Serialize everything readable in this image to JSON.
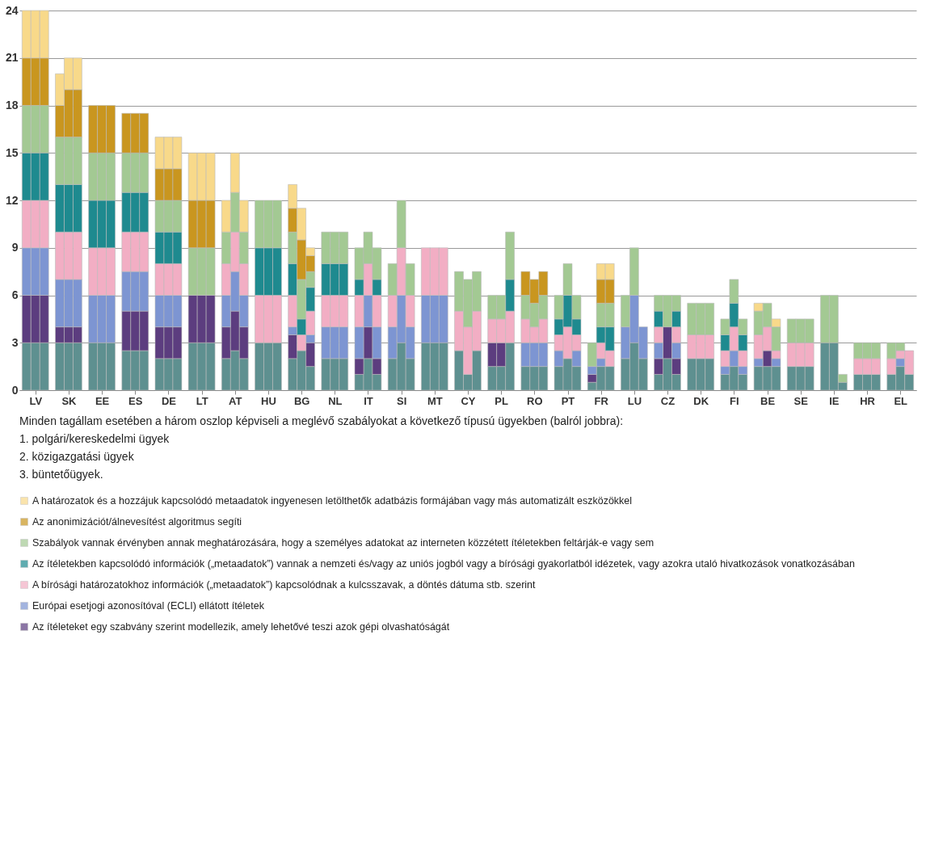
{
  "chart_data": {
    "type": "bar",
    "stacked": true,
    "grid": "y",
    "legend": "bottom",
    "categories": [
      null,
      "LV",
      null,
      null,
      "SK",
      null,
      null,
      "EE",
      null,
      null,
      "ES",
      null,
      null,
      "DE",
      null,
      null,
      "LT",
      null,
      null,
      "AT",
      null,
      null,
      "HU",
      null,
      null,
      "BG",
      null,
      null,
      "NL",
      null,
      null,
      "IT",
      null,
      null,
      "SI",
      null,
      null,
      "MT",
      null,
      null,
      "CY",
      null,
      null,
      "PL",
      null,
      null,
      "RO",
      null,
      null,
      "PT",
      null,
      null,
      "FR",
      null,
      null,
      "LU",
      null,
      null,
      "CZ",
      null,
      null,
      "DK",
      null,
      null,
      "FI",
      null,
      null,
      "BE",
      null,
      null,
      "SE",
      null,
      null,
      "IE",
      null,
      null,
      "HR",
      null,
      null,
      "EL",
      null
    ],
    "ylim": [
      0,
      24
    ],
    "yticks": [
      0,
      3,
      6,
      9,
      12,
      15,
      18,
      21,
      24
    ],
    "series": [
      {
        "color": "#5e9090",
        "values": [
          3,
          3,
          3,
          3,
          3,
          3,
          3,
          3,
          3,
          2.5,
          2.5,
          2.5,
          2,
          2,
          2,
          3,
          3,
          3,
          2,
          2.5,
          2,
          3,
          3,
          3,
          2,
          2.5,
          1.5,
          2,
          2,
          2,
          1,
          2,
          1,
          2,
          3,
          2,
          3,
          3,
          3,
          2.5,
          1,
          2.5,
          1.5,
          1.5,
          3,
          1.5,
          1.5,
          1.5,
          1.5,
          2,
          1.5,
          0.5,
          1.5,
          1.5,
          2,
          3,
          2,
          1,
          2,
          1,
          2,
          2,
          2,
          1,
          1.5,
          1,
          1.5,
          1.5,
          1.5,
          1.5,
          1.5,
          1.5,
          3,
          3,
          0.5,
          1,
          1,
          1,
          1,
          1.5,
          1
        ]
      },
      {
        "name": "Az ítéleteket egy szabvány szerint modellezik, amely lehetővé teszi azok gépi olvashatóságát",
        "color": "#5c3d7f",
        "values": [
          3,
          3,
          3,
          1,
          1,
          1,
          null,
          null,
          null,
          2.5,
          2.5,
          2.5,
          2,
          2,
          2,
          3,
          3,
          3,
          2,
          2.5,
          2,
          null,
          null,
          null,
          1.5,
          null,
          1.5,
          null,
          null,
          null,
          1,
          2,
          1,
          null,
          null,
          null,
          null,
          null,
          null,
          null,
          null,
          null,
          1.5,
          1.5,
          null,
          null,
          null,
          null,
          null,
          null,
          null,
          0.5,
          null,
          null,
          null,
          null,
          null,
          1,
          2,
          1,
          null,
          null,
          null,
          null,
          null,
          null,
          null,
          1,
          null,
          null,
          null,
          null,
          null,
          null,
          null,
          null,
          null,
          null,
          null,
          null,
          null
        ]
      },
      {
        "name": "Európai esetjogi azonosítóval (ECLI) ellátott ítéletek",
        "color": "#7d95d2",
        "values": [
          3,
          3,
          3,
          3,
          3,
          3,
          3,
          3,
          3,
          2.5,
          2.5,
          2.5,
          2,
          2,
          2,
          null,
          null,
          null,
          2,
          2.5,
          2,
          null,
          null,
          null,
          0.5,
          null,
          0.5,
          2,
          2,
          2,
          2,
          2,
          2,
          2,
          3,
          2,
          3,
          3,
          3,
          null,
          null,
          null,
          null,
          null,
          null,
          1.5,
          1.5,
          1.5,
          1,
          null,
          1,
          0.5,
          0.5,
          null,
          2,
          3,
          2,
          1,
          null,
          1,
          null,
          null,
          null,
          0.5,
          1,
          0.5,
          0.5,
          null,
          0.5,
          null,
          null,
          null,
          null,
          null,
          null,
          null,
          null,
          null,
          null,
          0.5,
          null
        ]
      },
      {
        "name": "A bírósági határozatokhoz információk („metaadatok”) kapcsolódnak a kulcsszavak, a döntés dátuma stb. szerint",
        "color": "#f2aec4",
        "values": [
          3,
          3,
          3,
          3,
          3,
          3,
          3,
          3,
          3,
          2.5,
          2.5,
          2.5,
          2,
          2,
          2,
          null,
          null,
          null,
          2,
          2.5,
          2,
          3,
          3,
          3,
          2,
          1,
          1.5,
          2,
          2,
          2,
          2,
          2,
          2,
          2,
          3,
          2,
          3,
          3,
          3,
          2.5,
          3,
          2.5,
          1.5,
          1.5,
          2,
          1.5,
          1,
          1.5,
          1,
          2,
          1,
          null,
          1,
          1,
          null,
          null,
          null,
          1,
          null,
          1,
          1.5,
          1.5,
          1.5,
          1,
          1.5,
          1,
          1.5,
          1.5,
          0.5,
          1.5,
          1.5,
          1.5,
          null,
          null,
          null,
          1,
          1,
          1,
          1,
          0.5,
          1.5
        ]
      },
      {
        "name": "Az ítéletekben kapcsolódó információk („metaadatok”) vannak a nemzeti és/vagy az uniós jogból vagy a bírósági gyakorlatból idézetek, vagy azokra utaló hivatkozások vonatkozásában",
        "color": "#1e8a8f",
        "values": [
          3,
          3,
          3,
          3,
          3,
          3,
          3,
          3,
          3,
          2.5,
          2.5,
          2.5,
          2,
          2,
          2,
          null,
          null,
          null,
          null,
          null,
          null,
          3,
          3,
          3,
          2,
          1,
          1.5,
          2,
          2,
          2,
          1,
          null,
          1,
          null,
          null,
          null,
          null,
          null,
          null,
          null,
          null,
          null,
          null,
          null,
          2,
          null,
          null,
          null,
          1,
          2,
          1,
          null,
          1,
          1.5,
          null,
          null,
          null,
          1,
          null,
          1,
          null,
          null,
          null,
          1,
          1.5,
          1,
          null,
          null,
          null,
          null,
          null,
          null,
          null,
          null,
          null,
          null,
          null,
          null,
          null,
          null,
          null
        ]
      },
      {
        "name": "Szabályok vannak érvényben annak meghatározására, hogy a személyes adatokat az interneten közzétett ítéletekben feltárják-e vagy sem",
        "color": "#a3c993",
        "values": [
          3,
          3,
          3,
          3,
          3,
          3,
          3,
          3,
          3,
          2.5,
          2.5,
          2.5,
          2,
          2,
          2,
          3,
          3,
          3,
          2,
          2.5,
          2,
          3,
          3,
          3,
          2,
          2.5,
          1,
          2,
          2,
          2,
          2,
          2,
          2,
          2,
          3,
          2,
          null,
          null,
          null,
          2.5,
          3,
          2.5,
          1.5,
          1.5,
          3,
          1.5,
          1.5,
          1.5,
          1.5,
          2,
          1.5,
          1.5,
          1.5,
          1.5,
          2,
          3,
          null,
          1,
          2,
          1,
          2,
          2,
          2,
          1,
          1.5,
          1,
          1.5,
          1.5,
          1.5,
          1.5,
          1.5,
          1.5,
          3,
          3,
          0.5,
          1,
          1,
          1,
          1,
          0.5,
          null
        ]
      },
      {
        "name": "Az anonimizációt/álnevesítést algoritmus segíti",
        "color": "#c9961f",
        "values": [
          3,
          3,
          3,
          2,
          3,
          3,
          3,
          3,
          3,
          2.5,
          2.5,
          2.5,
          2,
          2,
          2,
          3,
          3,
          3,
          null,
          null,
          null,
          null,
          null,
          null,
          1.5,
          2.5,
          1,
          null,
          null,
          null,
          null,
          null,
          null,
          null,
          null,
          null,
          null,
          null,
          null,
          null,
          null,
          null,
          null,
          null,
          null,
          1.5,
          1.5,
          1.5,
          null,
          null,
          null,
          null,
          1.5,
          1.5,
          null,
          null,
          null,
          null,
          null,
          null,
          null,
          null,
          null,
          null,
          null,
          null,
          null,
          null,
          null,
          null,
          null,
          null,
          null,
          null,
          null,
          null,
          null,
          null,
          null,
          null,
          null
        ]
      },
      {
        "name": "A határozatok és a hozzájuk kapcsolódó metaadatok ingyenesen letölthetők adatbázis formájában vagy más automatizált eszközökkel",
        "color": "#f8d98a",
        "values": [
          3,
          3,
          3,
          2,
          2,
          2,
          null,
          null,
          null,
          null,
          null,
          null,
          2,
          2,
          2,
          3,
          3,
          3,
          2,
          2.5,
          2,
          null,
          null,
          null,
          1.5,
          2,
          0.5,
          null,
          null,
          null,
          null,
          null,
          null,
          null,
          null,
          null,
          null,
          null,
          null,
          null,
          null,
          null,
          null,
          null,
          null,
          null,
          null,
          null,
          null,
          null,
          null,
          null,
          1,
          1,
          null,
          null,
          null,
          null,
          null,
          null,
          null,
          null,
          null,
          null,
          null,
          null,
          0.5,
          null,
          0.5,
          null,
          null,
          null,
          null,
          null,
          null,
          null,
          null,
          null,
          null,
          null,
          null
        ]
      }
    ],
    "annotations": [
      "Minden tagállam esetében a három oszlop képviseli a meglévő szabályokat a következő típusú ügyekben (balról jobbra):",
      "1. polgári/kereskedelmi ügyek",
      "2. közigazgatási  ügyek",
      "3. büntetőügyek."
    ]
  }
}
